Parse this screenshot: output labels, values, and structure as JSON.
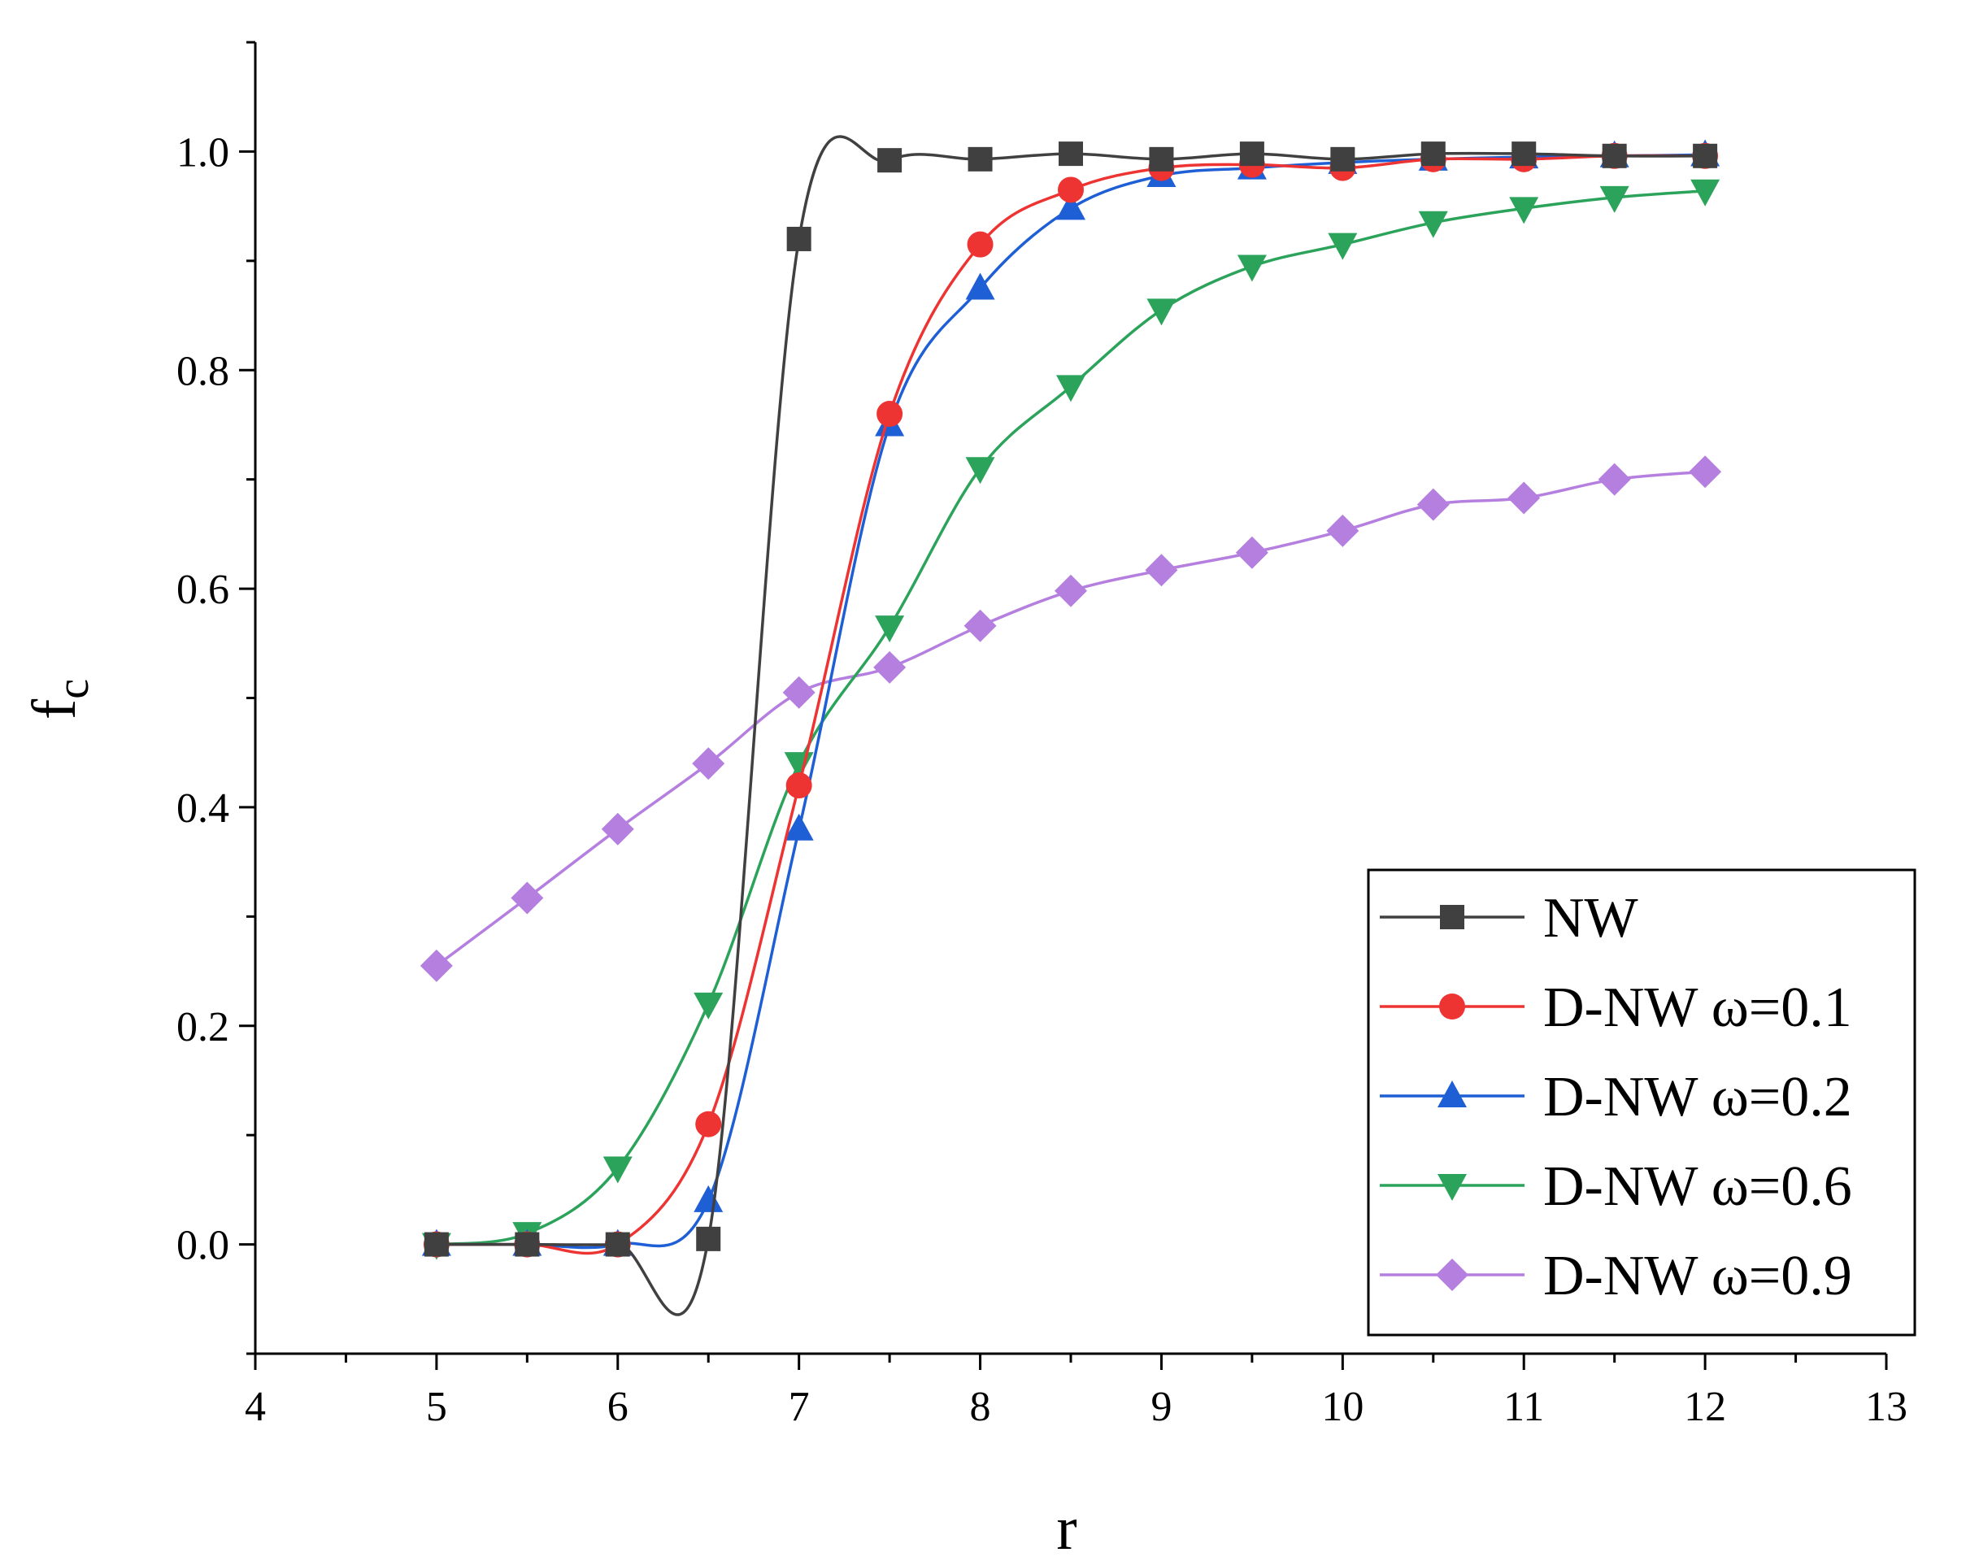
{
  "chart_data": {
    "type": "line",
    "title": "",
    "xlabel": "r",
    "ylabel_main": "f",
    "ylabel_sub": "c",
    "xlim": [
      4,
      13
    ],
    "ylim": [
      -0.1,
      1.1
    ],
    "xticks": [
      "4",
      "5",
      "6",
      "7",
      "8",
      "9",
      "10",
      "11",
      "12",
      "13"
    ],
    "yticks": [
      "0.0",
      "0.2",
      "0.4",
      "0.6",
      "0.8",
      "1.0"
    ],
    "legend_position": "bottom-right",
    "series": [
      {
        "name": "NW",
        "color": "#404040",
        "marker": "square",
        "x": [
          5,
          5.5,
          6,
          6.5,
          7,
          7.5,
          8,
          8.5,
          9,
          9.5,
          10,
          10.5,
          11,
          11.5,
          12
        ],
        "y": [
          0.0,
          0.0,
          0.0,
          0.005,
          0.92,
          0.992,
          0.993,
          0.998,
          0.993,
          0.998,
          0.993,
          0.998,
          0.998,
          0.996,
          0.996
        ]
      },
      {
        "name": "D-NW ω=0.1",
        "color": "#ee3333",
        "marker": "circle",
        "x": [
          5,
          5.5,
          6,
          6.5,
          7,
          7.5,
          8,
          8.5,
          9,
          9.5,
          10,
          10.5,
          11,
          11.5,
          12
        ],
        "y": [
          0.0,
          0.0,
          0.0,
          0.11,
          0.42,
          0.76,
          0.915,
          0.965,
          0.985,
          0.988,
          0.985,
          0.993,
          0.993,
          0.996,
          0.996
        ]
      },
      {
        "name": "D-NW ω=0.2",
        "color": "#1f5fd6",
        "marker": "triangle-up",
        "x": [
          5,
          5.5,
          6,
          6.5,
          7,
          7.5,
          8,
          8.5,
          9,
          9.5,
          10,
          10.5,
          11,
          11.5,
          12
        ],
        "y": [
          0.0,
          0.0,
          0.0,
          0.04,
          0.38,
          0.75,
          0.875,
          0.948,
          0.978,
          0.985,
          0.99,
          0.993,
          0.995,
          0.996,
          0.997
        ]
      },
      {
        "name": "D-NW ω=0.6",
        "color": "#2ca35b",
        "marker": "triangle-down",
        "x": [
          5,
          5.5,
          6,
          6.5,
          7,
          7.5,
          8,
          8.5,
          9,
          9.5,
          10,
          10.5,
          11,
          11.5,
          12
        ],
        "y": [
          0.0,
          0.01,
          0.07,
          0.22,
          0.44,
          0.565,
          0.71,
          0.785,
          0.855,
          0.895,
          0.915,
          0.935,
          0.948,
          0.958,
          0.964
        ]
      },
      {
        "name": "D-NW ω=0.9",
        "color": "#b57fe0",
        "marker": "diamond",
        "x": [
          5,
          5.5,
          6,
          6.5,
          7,
          7.5,
          8,
          8.5,
          9,
          9.5,
          10,
          10.5,
          11,
          11.5,
          12
        ],
        "y": [
          0.255,
          0.317,
          0.38,
          0.44,
          0.505,
          0.528,
          0.566,
          0.598,
          0.617,
          0.633,
          0.653,
          0.677,
          0.683,
          0.7,
          0.707
        ]
      }
    ]
  }
}
